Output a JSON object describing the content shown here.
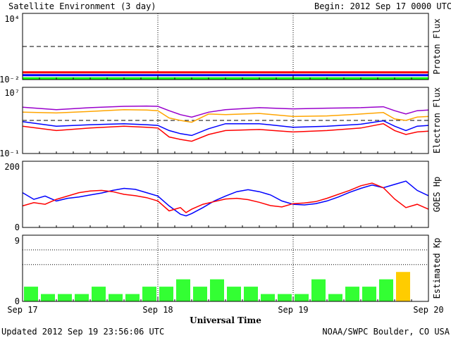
{
  "header": {
    "title": "Satellite Environment (3 day)",
    "begin": "Begin:  2012 Sep 17 0000 UTC"
  },
  "footer": {
    "updated": "Updated 2012 Sep 19 23:56:06 UTC",
    "source": "NOAA/SWPC Boulder, CO USA"
  },
  "colors": {
    "red": "#ff0000",
    "blue": "#0000ff",
    "green": "#00ff00",
    "orange": "#ffa500",
    "purple": "#9900cc",
    "kp_green": "#33ff33",
    "kp_yellow": "#ffcc00"
  },
  "chart_data": [
    {
      "type": "line",
      "ylabel": "Proton Flux",
      "yscale": "log",
      "ylim": [
        0.01,
        10000
      ],
      "ytick_labels": [
        "10⁴",
        "10⁻²"
      ],
      "threshold": 10,
      "series": [
        {
          "color": "#ff0000",
          "x": [
            0,
            72
          ],
          "values": [
            0.045,
            0.045
          ]
        },
        {
          "color": "#0000ff",
          "x": [
            0,
            72
          ],
          "values": [
            0.025,
            0.025
          ]
        },
        {
          "color": "#00ff00",
          "x": [
            0,
            72
          ],
          "values": [
            0.013,
            0.013
          ]
        }
      ]
    },
    {
      "type": "line",
      "ylabel": "Electron Flux",
      "yscale": "log",
      "ylim": [
        0.1,
        10000000
      ],
      "ytick_labels": [
        "10⁷",
        "10⁻¹"
      ],
      "threshold": 1000,
      "series": [
        {
          "color": "#9900cc",
          "x": [
            0,
            6,
            12,
            18,
            22,
            24,
            26,
            28,
            30,
            33,
            36,
            42,
            48,
            54,
            60,
            64,
            66,
            68,
            70,
            72
          ],
          "values": [
            40000,
            20000,
            35000,
            50000,
            55000,
            50000,
            15000,
            5000,
            2500,
            10000,
            20000,
            35000,
            25000,
            30000,
            35000,
            45000,
            15000,
            6000,
            15000,
            18000
          ]
        },
        {
          "color": "#ffa500",
          "x": [
            0,
            6,
            12,
            18,
            22,
            24,
            26,
            28,
            30,
            33,
            36,
            42,
            48,
            54,
            60,
            64,
            66,
            68,
            70,
            72
          ],
          "values": [
            10000,
            8000,
            12000,
            20000,
            18000,
            15000,
            2000,
            1000,
            600,
            6000,
            5000,
            7000,
            3000,
            3500,
            6000,
            9000,
            1500,
            1000,
            2500,
            3000
          ]
        },
        {
          "color": "#0000ff",
          "x": [
            0,
            6,
            12,
            18,
            22,
            24,
            26,
            28,
            30,
            33,
            36,
            42,
            48,
            54,
            60,
            64,
            66,
            68,
            70,
            72
          ],
          "values": [
            700,
            200,
            300,
            400,
            300,
            250,
            60,
            25,
            15,
            100,
            400,
            400,
            150,
            200,
            350,
            900,
            200,
            60,
            200,
            250
          ]
        },
        {
          "color": "#ff0000",
          "x": [
            0,
            6,
            12,
            18,
            22,
            24,
            26,
            28,
            30,
            33,
            36,
            42,
            48,
            54,
            60,
            64,
            66,
            68,
            70,
            72
          ],
          "values": [
            200,
            60,
            120,
            200,
            150,
            120,
            10,
            5,
            3,
            20,
            60,
            80,
            40,
            60,
            120,
            400,
            60,
            20,
            40,
            50
          ]
        }
      ]
    },
    {
      "type": "line",
      "ylabel": "GOES Hp",
      "ylim": [
        0,
        200
      ],
      "ytick_labels": [
        "200",
        "0"
      ],
      "series": [
        {
          "color": "#0000ff",
          "x": [
            0,
            2,
            4,
            6,
            8,
            10,
            12,
            14,
            16,
            18,
            20,
            22,
            24,
            26,
            28,
            29,
            30,
            32,
            34,
            36,
            38,
            40,
            42,
            44,
            46,
            48,
            50,
            52,
            54,
            56,
            58,
            60,
            62,
            64,
            66,
            68,
            70,
            72
          ],
          "values": [
            105,
            85,
            95,
            80,
            88,
            92,
            98,
            104,
            112,
            118,
            115,
            105,
            95,
            65,
            40,
            35,
            42,
            60,
            80,
            95,
            108,
            114,
            108,
            98,
            80,
            70,
            68,
            72,
            80,
            92,
            106,
            118,
            128,
            120,
            130,
            140,
            112,
            96
          ]
        },
        {
          "color": "#ff0000",
          "x": [
            0,
            2,
            4,
            6,
            8,
            10,
            12,
            14,
            16,
            18,
            20,
            22,
            24,
            26,
            28,
            29,
            30,
            32,
            34,
            36,
            38,
            40,
            42,
            44,
            46,
            48,
            50,
            52,
            54,
            56,
            58,
            60,
            62,
            64,
            66,
            68,
            70,
            72
          ],
          "values": [
            65,
            75,
            70,
            85,
            95,
            105,
            110,
            112,
            108,
            100,
            96,
            90,
            80,
            50,
            60,
            45,
            55,
            70,
            78,
            86,
            88,
            84,
            76,
            66,
            62,
            72,
            74,
            78,
            88,
            100,
            112,
            126,
            134,
            120,
            86,
            60,
            70,
            55
          ]
        }
      ]
    },
    {
      "type": "bar",
      "ylabel": "Estimated Kp",
      "ylim": [
        0,
        9
      ],
      "ytick_labels": [
        "9",
        "0"
      ],
      "values": [
        2,
        1,
        1,
        1,
        2,
        1,
        1,
        2,
        2,
        3,
        2,
        3,
        2,
        2,
        1,
        1,
        1,
        3,
        1,
        2,
        2,
        3,
        4
      ],
      "colors": [
        "#33ff33",
        "#33ff33",
        "#33ff33",
        "#33ff33",
        "#33ff33",
        "#33ff33",
        "#33ff33",
        "#33ff33",
        "#33ff33",
        "#33ff33",
        "#33ff33",
        "#33ff33",
        "#33ff33",
        "#33ff33",
        "#33ff33",
        "#33ff33",
        "#33ff33",
        "#33ff33",
        "#33ff33",
        "#33ff33",
        "#33ff33",
        "#33ff33",
        "#ffcc00"
      ]
    }
  ],
  "xaxis": {
    "xlabel": "Universal Time",
    "xlim": [
      0,
      72
    ],
    "ticks": [
      {
        "x": 0,
        "label": "Sep 17"
      },
      {
        "x": 24,
        "label": "Sep 18"
      },
      {
        "x": 48,
        "label": "Sep 19"
      },
      {
        "x": 72,
        "label": "Sep 20"
      }
    ]
  }
}
